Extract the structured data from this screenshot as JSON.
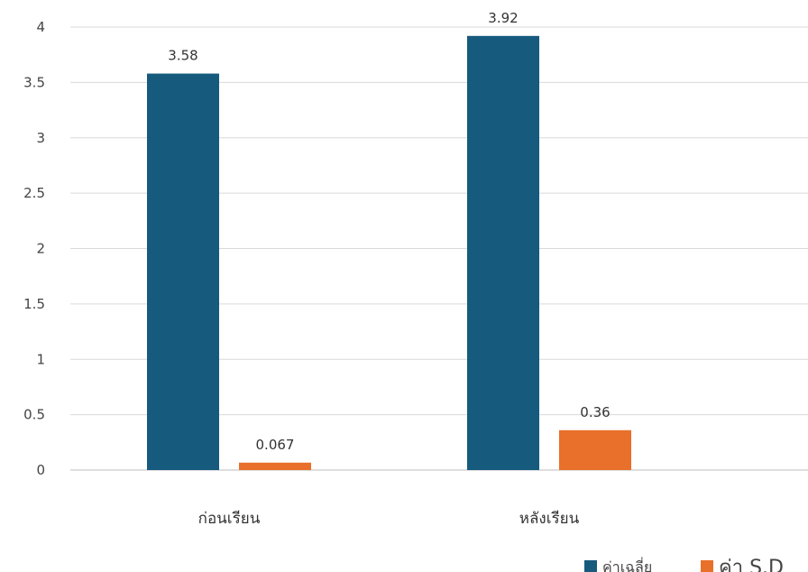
{
  "chart_data": {
    "type": "bar",
    "categories": [
      "ก่อนเรียน",
      "หลังเรียน"
    ],
    "series": [
      {
        "name": "ค่าเฉลี่ย",
        "values": [
          3.58,
          3.92
        ],
        "color": "#165a7e"
      },
      {
        "name": "ค่า S.D",
        "values": [
          0.067,
          0.36
        ],
        "color": "#e8702a"
      }
    ],
    "data_labels": [
      [
        "3.58",
        "3.92"
      ],
      [
        "0.067",
        "0.36"
      ]
    ],
    "ylim": [
      0,
      4
    ],
    "yticks": [
      "0",
      "0.5",
      "1",
      "1.5",
      "2",
      "2.5",
      "3",
      "3.5",
      "4"
    ],
    "grid": true,
    "legend_position": "bottom-right"
  }
}
